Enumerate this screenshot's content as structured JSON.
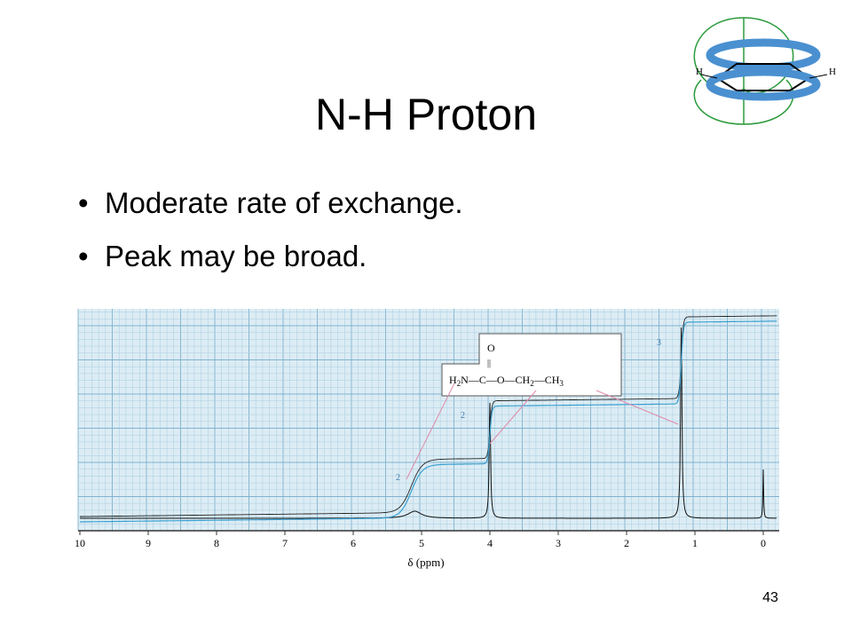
{
  "slide": {
    "title": "N-H Proton",
    "bullets": [
      "Moderate rate of exchange.",
      "Peak may be broad."
    ],
    "page_number": "43"
  },
  "icon": {
    "left_label": "H",
    "right_label": "H"
  },
  "spectrum": {
    "axis_ticks": [
      "10",
      "9",
      "8",
      "7",
      "6",
      "5",
      "4",
      "3",
      "2",
      "1",
      "0"
    ],
    "axis_label": "δ (ppm)",
    "integrations": [
      "2",
      "2",
      "3"
    ],
    "structure": {
      "top": "O",
      "bond": "||",
      "formula": [
        "H",
        "2",
        "N—C—O—CH",
        "2",
        "—CH",
        "3"
      ]
    }
  }
}
